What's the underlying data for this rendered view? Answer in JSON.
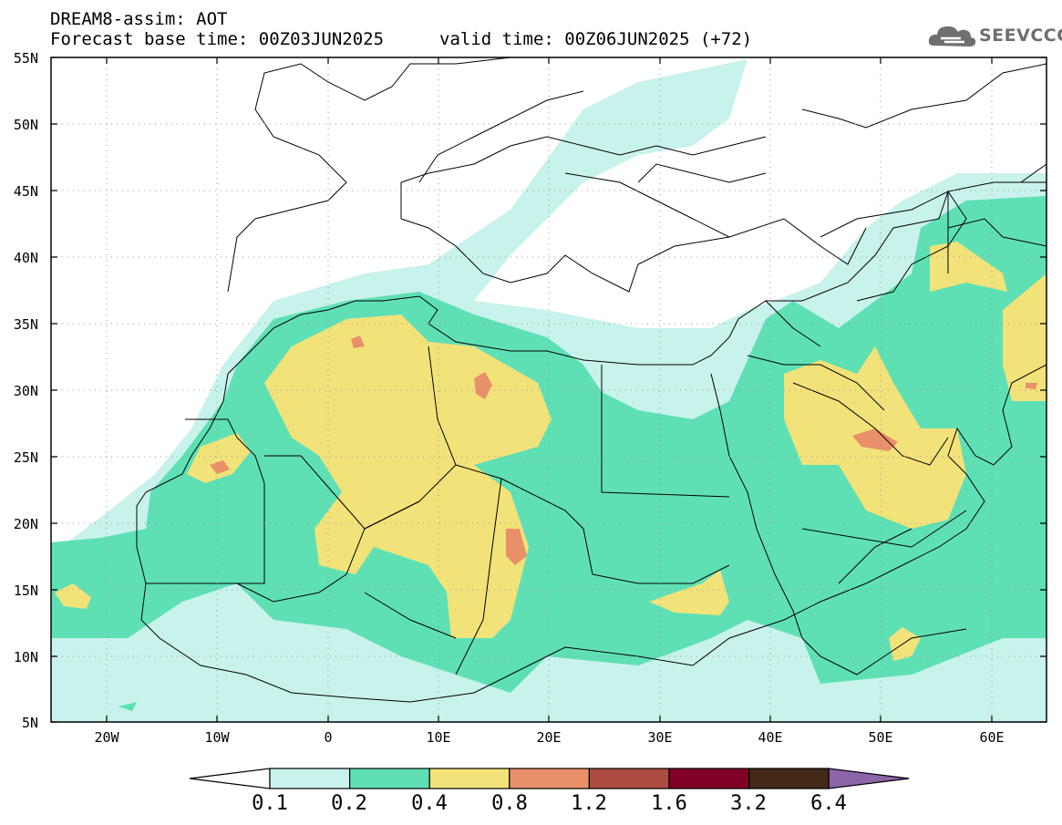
{
  "title": {
    "line1": "DREAM8-assim: AOT",
    "line2_base": "Forecast base time: 00Z03JUN2025",
    "line2_valid": "valid time: 00Z06JUN2025 (+72)"
  },
  "logo": {
    "icon": "cloud-icon",
    "text": "SEEVCCC"
  },
  "map": {
    "lat_range": [
      5,
      55
    ],
    "lon_range": [
      -25,
      65
    ],
    "lat_labels": [
      "55N",
      "50N",
      "45N",
      "40N",
      "35N",
      "30N",
      "25N",
      "20N",
      "15N",
      "10N",
      "5N"
    ],
    "lon_labels": [
      "20W",
      "10W",
      "0",
      "10E",
      "20E",
      "30E",
      "40E",
      "50E",
      "60E"
    ]
  },
  "colorbar": {
    "labels": [
      "0.1",
      "0.2",
      "0.4",
      "0.8",
      "1.2",
      "1.6",
      "3.2",
      "6.4"
    ],
    "colors": [
      "#c8f2ec",
      "#5ee0b4",
      "#f2e27a",
      "#e8906a",
      "#ac4c40",
      "#800028",
      "#442818"
    ],
    "over_color": "#8c64a8",
    "under_color": "#ffffff"
  }
}
